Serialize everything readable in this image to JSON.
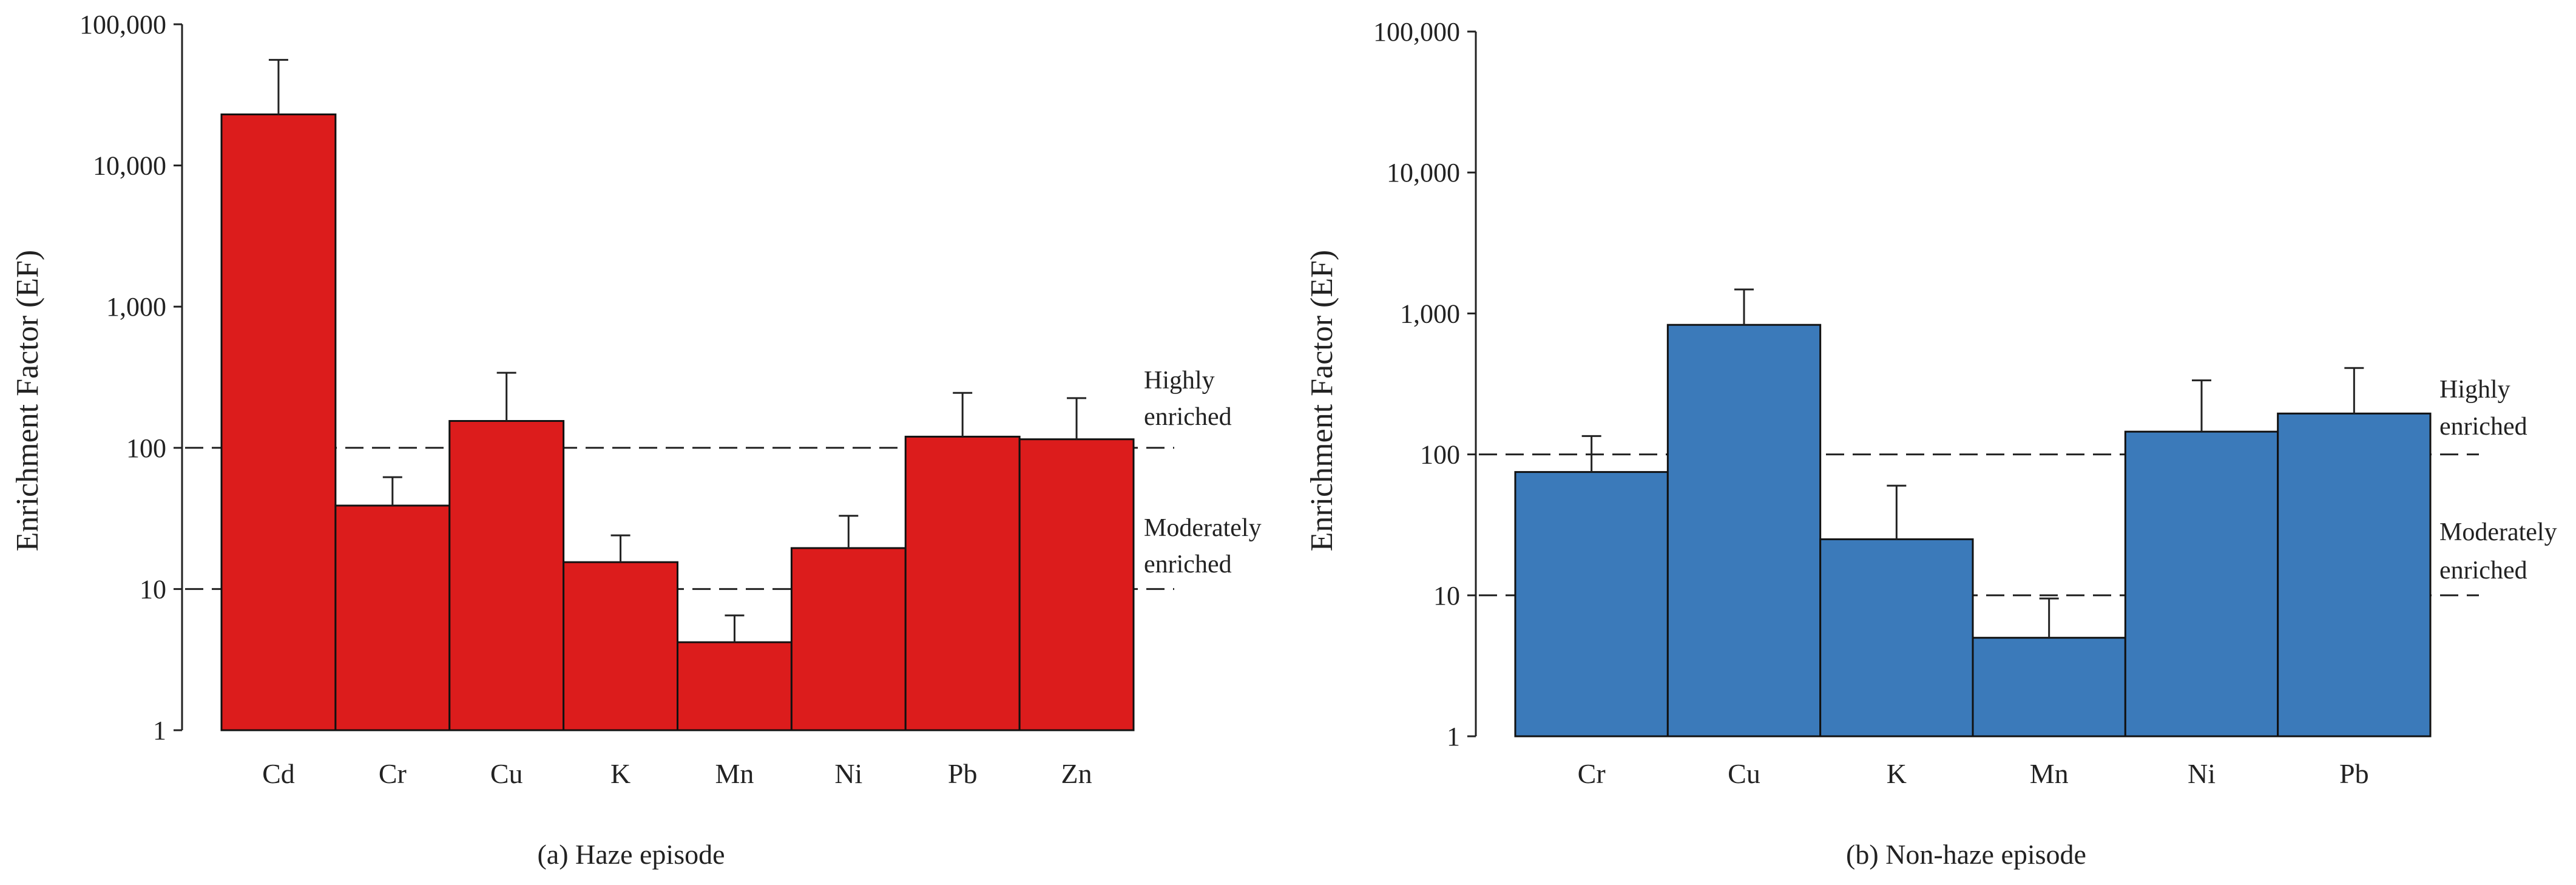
{
  "chart_data": [
    {
      "type": "bar",
      "scale": "log",
      "panel": "a",
      "caption": "(a) Haze episode",
      "ylabel": "Enrichment Factor (EF)",
      "xlabel": "",
      "ylim": [
        1,
        100000
      ],
      "yticks": [
        1,
        10,
        100,
        1000,
        10000,
        100000
      ],
      "ytick_labels": [
        "1",
        "10",
        "100",
        "1,000",
        "10,000",
        "100,000"
      ],
      "categories": [
        "Cd",
        "Cr",
        "Cu",
        "K",
        "Mn",
        "Ni",
        "Pb",
        "Zn"
      ],
      "values": [
        23000,
        39,
        155,
        15.5,
        4.2,
        19.5,
        120,
        115
      ],
      "error_upper": [
        56000,
        62,
        340,
        24,
        6.5,
        33,
        245,
        225
      ],
      "color": "#dc1c1c",
      "thresholds": [
        {
          "value": 100,
          "label": [
            "Highly",
            "enriched"
          ]
        },
        {
          "value": 10,
          "label": [
            "Moderately",
            "enriched"
          ]
        }
      ]
    },
    {
      "type": "bar",
      "scale": "log",
      "panel": "b",
      "caption": "(b) Non-haze episode",
      "ylabel": "Enrichment Factor (EF)",
      "xlabel": "",
      "ylim": [
        1,
        100000
      ],
      "yticks": [
        1,
        10,
        100,
        1000,
        10000,
        100000
      ],
      "ytick_labels": [
        "1",
        "10",
        "100",
        "1,000",
        "10,000",
        "100,000"
      ],
      "categories": [
        "Cr",
        "Cu",
        "K",
        "Mn",
        "Ni",
        "Pb"
      ],
      "values": [
        75,
        830,
        25,
        5,
        145,
        195
      ],
      "error_upper": [
        135,
        1480,
        60,
        9.5,
        335,
        410
      ],
      "color": "#3b7aba",
      "thresholds": [
        {
          "value": 100,
          "label": [
            "Highly",
            "enriched"
          ]
        },
        {
          "value": 10,
          "label": [
            "Moderately",
            "enriched"
          ]
        }
      ]
    }
  ]
}
